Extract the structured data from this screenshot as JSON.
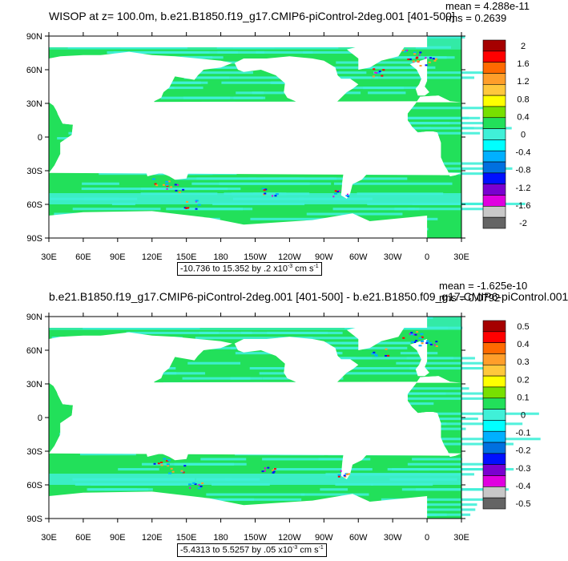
{
  "panels": [
    {
      "title": "WISOP at z= 100.0m, b.e21.B1850.f19_g17.CMIP6-piControl-2deg.001 [401-500]",
      "mean_text": "mean = 4.288e-11",
      "rms_text": "rms = 0.2639",
      "range_text_main": "-10.736 to 15.352 by .2 x10",
      "range_exp": "-3",
      "range_units": " cm s",
      "range_units_exp": "-1",
      "colorbar_labels": [
        "2",
        "1.6",
        "1.2",
        "0.8",
        "0.4",
        "0",
        "-0.4",
        "-0.8",
        "-1.2",
        "-1.6",
        "-2"
      ]
    },
    {
      "title": "b.e21.B1850.f19_g17.CMIP6-piControl-2deg.001 [401-500] - b.e21.B1850.f09_g17.CMIP6-piControl.001",
      "mean_text": "mean = -1.625e-10",
      "rms_text": "rms = 0.0792",
      "range_text_main": "-5.4313 to 5.5257 by .05 x10",
      "range_exp": "-3",
      "range_units": " cm s",
      "range_units_exp": "-1",
      "colorbar_labels": [
        "0.5",
        "0.4",
        "0.3",
        "0.2",
        "0.1",
        "0",
        "-0.1",
        "-0.2",
        "-0.3",
        "-0.4",
        "-0.5"
      ]
    }
  ],
  "lat_labels": [
    "90N",
    "60N",
    "30N",
    "0",
    "30S",
    "60S",
    "90S"
  ],
  "lon_labels": [
    "30E",
    "60E",
    "90E",
    "120E",
    "150E",
    "180",
    "150W",
    "120W",
    "90W",
    "60W",
    "30W",
    "0",
    "30E"
  ],
  "colors": {
    "ocean_base": "#22e05a",
    "ocean_alt": "#40f0d8",
    "land": "#ffffff",
    "colorbar": [
      "#a50000",
      "#ff0000",
      "#ff6a00",
      "#ff9e2a",
      "#ffc83c",
      "#ffff00",
      "#78e000",
      "#22e05a",
      "#40f0d8",
      "#00ffff",
      "#00b0ff",
      "#0070e0",
      "#0010ff",
      "#7a00d0",
      "#e000e0",
      "#c8c8c8",
      "#646464"
    ]
  }
}
